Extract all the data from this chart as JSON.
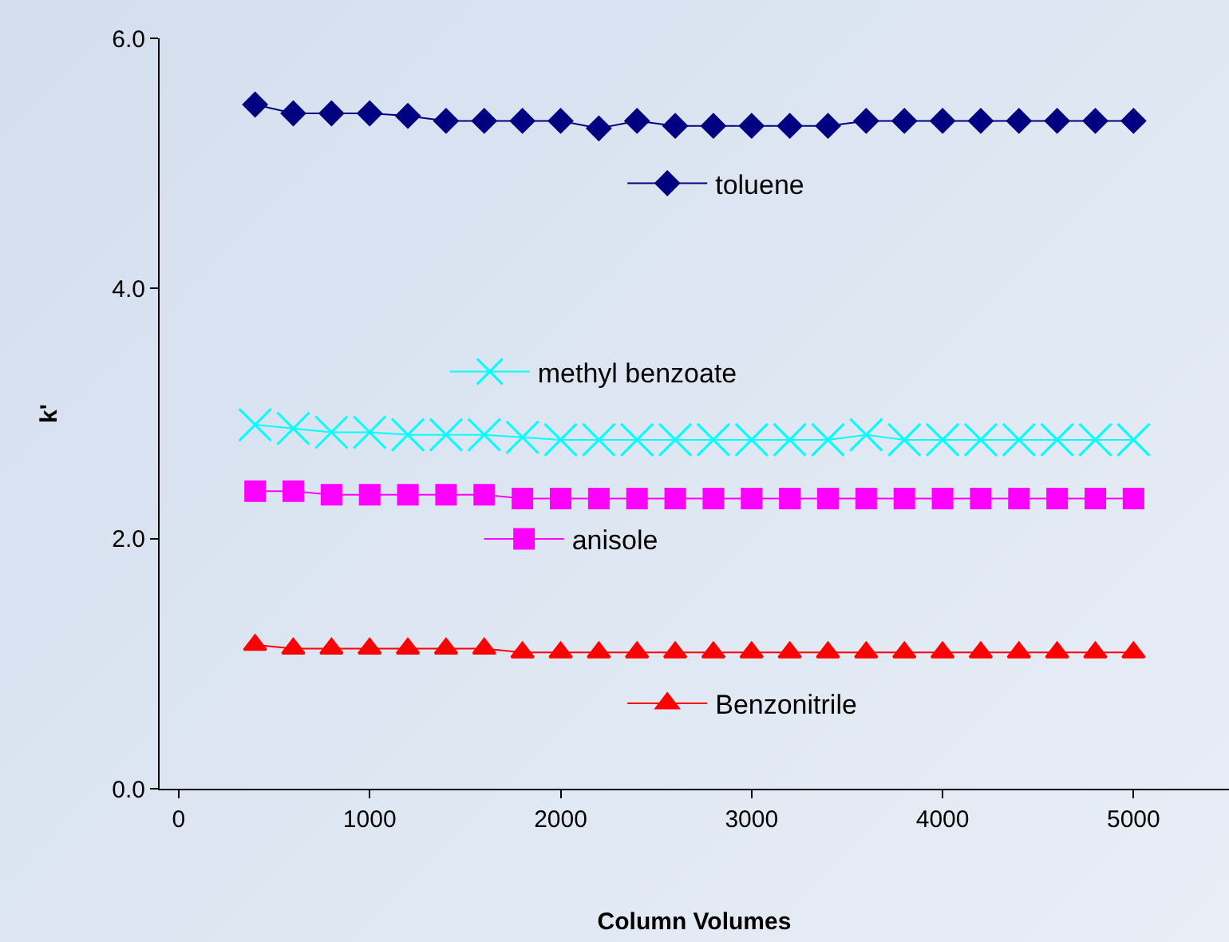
{
  "chart_data": {
    "type": "line",
    "xlabel": "Column Volumes",
    "ylabel": "k'",
    "x": [
      400,
      600,
      800,
      1000,
      1200,
      1400,
      1600,
      1800,
      2000,
      2200,
      2400,
      2600,
      2800,
      3000,
      3200,
      3400,
      3600,
      3800,
      4000,
      4200,
      4400,
      4600,
      4800,
      5000
    ],
    "series": [
      {
        "name": "toluene",
        "color": "#000080",
        "marker": "diamond",
        "values": [
          5.47,
          5.4,
          5.4,
          5.4,
          5.38,
          5.34,
          5.34,
          5.34,
          5.34,
          5.28,
          5.34,
          5.3,
          5.3,
          5.3,
          5.3,
          5.3,
          5.34,
          5.34,
          5.34,
          5.34,
          5.34,
          5.34,
          5.34,
          5.34
        ]
      },
      {
        "name": "methyl benzoate",
        "color": "#00ffff",
        "marker": "cross",
        "values": [
          2.91,
          2.88,
          2.85,
          2.85,
          2.83,
          2.83,
          2.83,
          2.81,
          2.79,
          2.79,
          2.79,
          2.79,
          2.79,
          2.79,
          2.79,
          2.79,
          2.83,
          2.79,
          2.79,
          2.79,
          2.79,
          2.79,
          2.79,
          2.79
        ]
      },
      {
        "name": "anisole",
        "color": "#ff00ff",
        "marker": "square",
        "values": [
          2.38,
          2.38,
          2.35,
          2.35,
          2.35,
          2.35,
          2.35,
          2.32,
          2.32,
          2.32,
          2.32,
          2.32,
          2.32,
          2.32,
          2.32,
          2.32,
          2.32,
          2.32,
          2.32,
          2.32,
          2.32,
          2.32,
          2.32,
          2.32
        ]
      },
      {
        "name": "Benzonitrile",
        "color": "#ff0000",
        "marker": "triangle",
        "values": [
          1.15,
          1.12,
          1.12,
          1.12,
          1.12,
          1.12,
          1.12,
          1.09,
          1.09,
          1.09,
          1.09,
          1.09,
          1.09,
          1.09,
          1.09,
          1.09,
          1.09,
          1.09,
          1.09,
          1.09,
          1.09,
          1.09,
          1.09,
          1.09
        ]
      }
    ],
    "xlim": [
      -100,
      5500
    ],
    "xticks": [
      0,
      1000,
      2000,
      3000,
      4000,
      5000
    ],
    "ylim": [
      0,
      6
    ],
    "yticks": [
      {
        "value": 0,
        "label": "0.0"
      },
      {
        "value": 2,
        "label": "2.0"
      },
      {
        "value": 4,
        "label": "4.0"
      },
      {
        "value": 6,
        "label": "6.0"
      }
    ],
    "grid": false,
    "legend": "left",
    "line_style": "solid"
  }
}
